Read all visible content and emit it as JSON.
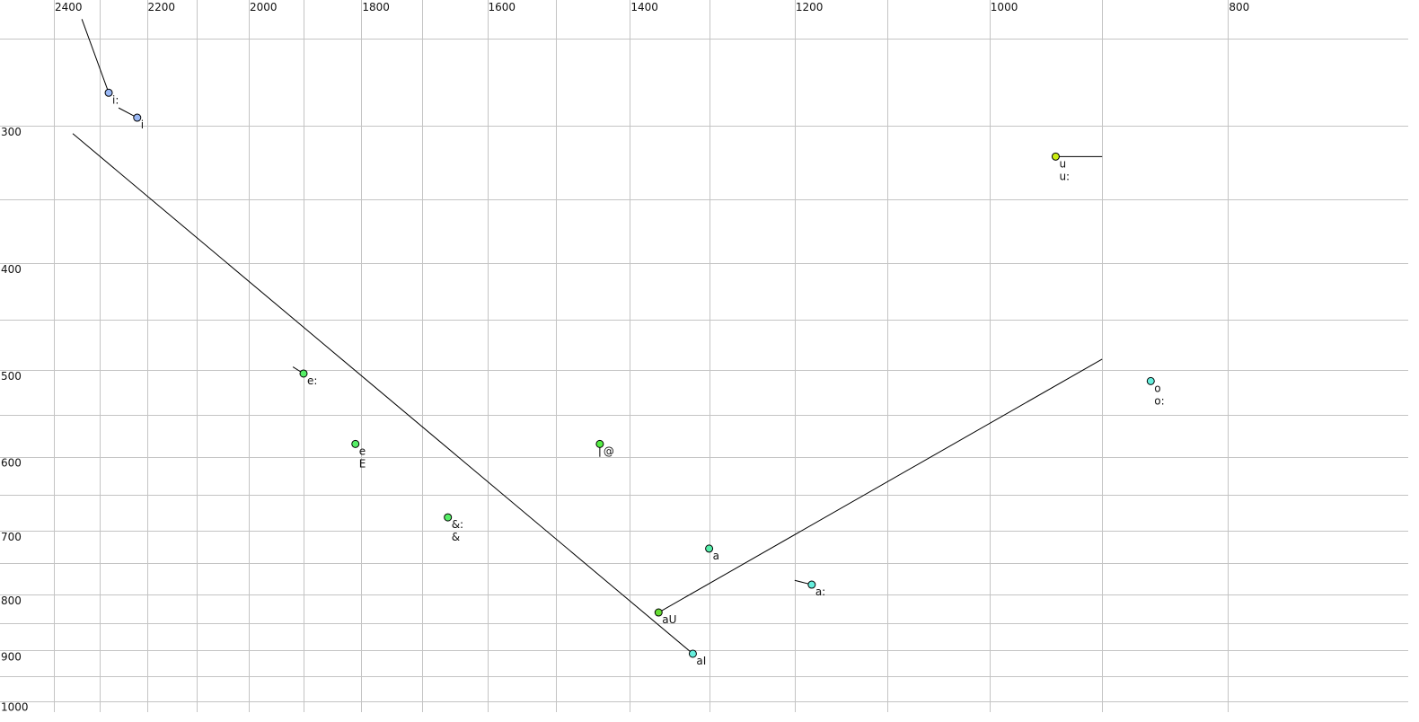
{
  "chart_data": {
    "type": "scatter",
    "title": "",
    "xlabel": "",
    "ylabel": "",
    "x_scale": "log",
    "y_scale": "log",
    "x_reversed": true,
    "xlim": [
      2400,
      760
    ],
    "ylim": [
      250,
      1010
    ],
    "grid": true,
    "x_grid_step": 100,
    "y_grid_step": 50,
    "x_ticks": [
      2400,
      2200,
      2000,
      1800,
      1600,
      1400,
      1200,
      1000,
      800
    ],
    "y_ticks": [
      300,
      400,
      500,
      600,
      700,
      800,
      900,
      1000
    ],
    "points": [
      {
        "labels": [
          "i:"
        ],
        "f2": 2280,
        "f1": 280,
        "color": "#9ab8f5"
      },
      {
        "labels": [
          "i"
        ],
        "f2": 2220,
        "f1": 295,
        "color": "#9ab8f5"
      },
      {
        "labels": [
          "e:"
        ],
        "f2": 1900,
        "f1": 504,
        "color": "#55ee66"
      },
      {
        "labels": [
          "e",
          "E"
        ],
        "f2": 1810,
        "f1": 584,
        "color": "#55ee66"
      },
      {
        "labels": [
          "&:",
          "&"
        ],
        "f2": 1660,
        "f1": 681,
        "color": "#55ee66"
      },
      {
        "labels": [
          "@"
        ],
        "f2": 1440,
        "f1": 584,
        "color": "#55ee44"
      },
      {
        "labels": [
          "a"
        ],
        "f2": 1300,
        "f1": 727,
        "color": "#55eeaa"
      },
      {
        "labels": [
          "a:"
        ],
        "f2": 1181,
        "f1": 784,
        "color": "#66eedd"
      },
      {
        "labels": [
          "aU"
        ],
        "f2": 1363,
        "f1": 831,
        "color": "#66dd33"
      },
      {
        "labels": [
          "aI"
        ],
        "f2": 1320,
        "f1": 906,
        "color": "#66eedd"
      },
      {
        "labels": [
          "u",
          "u:"
        ],
        "f2": 940,
        "f1": 320,
        "color": "#ccee11"
      },
      {
        "labels": [
          "o",
          "o:"
        ],
        "f2": 860,
        "f1": 512,
        "color": "#66eedd"
      }
    ],
    "trajectories": [
      {
        "from": [
          2338,
          240
        ],
        "to": [
          2280,
          280
        ]
      },
      {
        "from": [
          2259,
          289
        ],
        "to": [
          2220,
          295
        ]
      },
      {
        "from": [
          1919,
          497
        ],
        "to": [
          1900,
          504
        ]
      },
      {
        "from": [
          1440,
          600
        ],
        "to": [
          1440,
          584
        ]
      },
      {
        "from": [
          1200,
          777
        ],
        "to": [
          1181,
          784
        ]
      },
      {
        "from": [
          2358,
          305
        ],
        "to": [
          1320,
          906
        ]
      },
      {
        "from": [
          900,
          489
        ],
        "to": [
          1363,
          831
        ]
      },
      {
        "from": [
          900,
          320
        ],
        "to": [
          940,
          320
        ]
      }
    ]
  }
}
